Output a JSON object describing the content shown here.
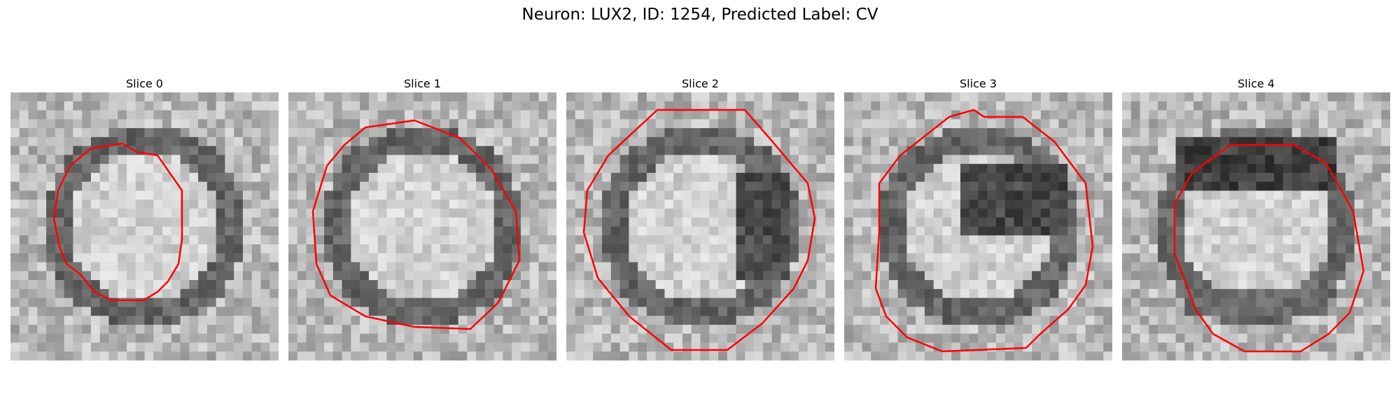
{
  "figure": {
    "title": "Neuron: LUX2, ID: 1254, Predicted Label: CV"
  },
  "panels": [
    {
      "title": "Slice 0",
      "dark_side": "ring"
    },
    {
      "title": "Slice 1",
      "dark_side": "ring"
    },
    {
      "title": "Slice 2",
      "dark_side": "right"
    },
    {
      "title": "Slice 3",
      "dark_side": "upper-right"
    },
    {
      "title": "Slice 4",
      "dark_side": "top"
    }
  ],
  "colors": {
    "contour": "#ff0000"
  }
}
